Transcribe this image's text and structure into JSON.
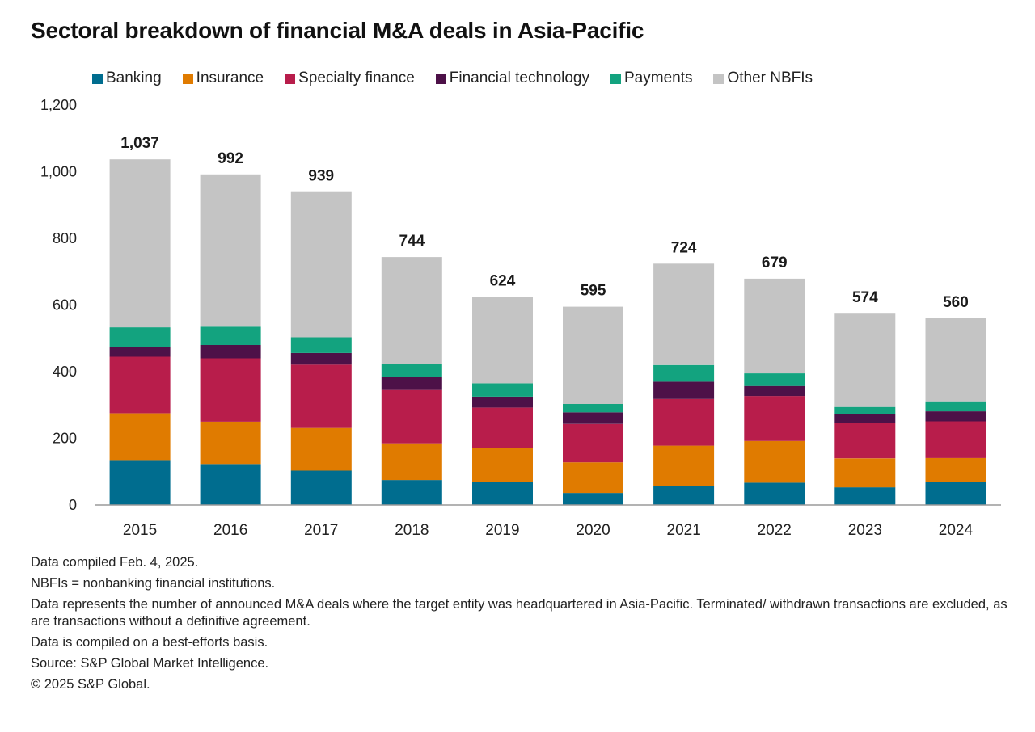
{
  "chart_data": {
    "type": "bar",
    "stacked": true,
    "title": "Sectoral breakdown of financial M&A deals in Asia-Pacific",
    "xlabel": "",
    "ylabel": "",
    "ylim": [
      0,
      1200
    ],
    "yticks": [
      0,
      200,
      400,
      600,
      800,
      1000,
      1200
    ],
    "ytick_labels": [
      "0",
      "200",
      "400",
      "600",
      "800",
      "1,000",
      "1,200"
    ],
    "grid": false,
    "legend_position": "top",
    "categories": [
      "2015",
      "2016",
      "2017",
      "2018",
      "2019",
      "2020",
      "2021",
      "2022",
      "2023",
      "2024"
    ],
    "totals": [
      "1,037",
      "992",
      "939",
      "744",
      "624",
      "595",
      "724",
      "679",
      "574",
      "560"
    ],
    "series": [
      {
        "name": "Banking",
        "color": "#006d8f",
        "values": [
          135,
          123,
          103,
          75,
          70,
          36,
          58,
          67,
          53,
          68
        ]
      },
      {
        "name": "Insurance",
        "color": "#e07b00",
        "values": [
          140,
          127,
          128,
          110,
          102,
          92,
          120,
          125,
          87,
          73
        ]
      },
      {
        "name": "Specialty finance",
        "color": "#b81d4b",
        "values": [
          170,
          190,
          190,
          160,
          120,
          115,
          140,
          135,
          105,
          110
        ]
      },
      {
        "name": "Financial technology",
        "color": "#4d1148",
        "values": [
          28,
          40,
          35,
          38,
          33,
          35,
          52,
          30,
          27,
          30
        ]
      },
      {
        "name": "Payments",
        "color": "#13a37f",
        "values": [
          60,
          55,
          47,
          40,
          40,
          25,
          50,
          38,
          22,
          30
        ]
      },
      {
        "name": "Other NBFIs",
        "color": "#c4c4c4",
        "values": [
          504,
          457,
          436,
          321,
          259,
          292,
          304,
          284,
          280,
          249
        ]
      }
    ]
  },
  "notes": [
    "Data compiled Feb. 4, 2025.",
    "NBFIs = nonbanking financial institutions.",
    "Data represents the number of announced M&A deals where the target entity was headquartered in Asia-Pacific. Terminated/ withdrawn transactions are excluded, as are transactions without a definitive agreement.",
    "Data is compiled on a best-efforts basis.",
    "Source: S&P Global Market Intelligence.",
    "© 2025 S&P Global."
  ]
}
